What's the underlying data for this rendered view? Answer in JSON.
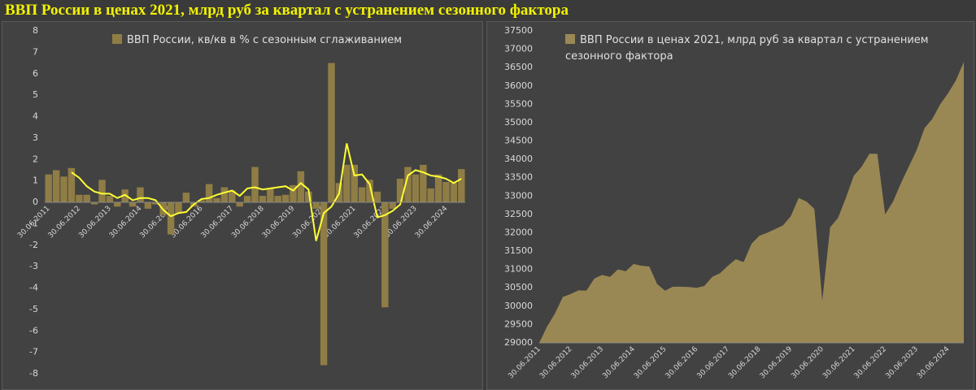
{
  "title": "ВВП России в ценах 2021, млрд руб за квартал с устранением сезонного фактора",
  "chart_data": [
    {
      "type": "bar",
      "categories": [
        "30.06.2011",
        null,
        null,
        null,
        "30.06.2012",
        null,
        null,
        null,
        "30.06.2013",
        null,
        null,
        null,
        "30.06.2014",
        null,
        null,
        null,
        "30.06.2015",
        null,
        null,
        null,
        "30.06.2016",
        null,
        null,
        null,
        "30.06.2017",
        null,
        null,
        null,
        "30.06.2018",
        null,
        null,
        null,
        "30.06.2019",
        null,
        null,
        null,
        "30.06.2020",
        null,
        null,
        null,
        "30.06.2021",
        null,
        null,
        null,
        "30.06.2022",
        null,
        null,
        null,
        "30.06.2023",
        null,
        null,
        null,
        "30.06.2024",
        null,
        null
      ],
      "series": [
        {
          "name": "ВВП России, кв/кв в % с сезонным сглаживанием",
          "color": "#8f7d45",
          "values": [
            1.3,
            1.5,
            1.2,
            1.6,
            0.35,
            0.35,
            -0.1,
            1.05,
            0.3,
            -0.2,
            0.6,
            -0.2,
            0.7,
            -0.3,
            -0.1,
            -0.6,
            -1.5,
            -0.5,
            0.45,
            -0.2,
            0.1,
            0.85,
            0.2,
            0.7,
            0.55,
            -0.2,
            0.3,
            1.65,
            0.3,
            0.65,
            0.3,
            0.35,
            0.8,
            1.45,
            0.5,
            -0.3,
            -7.6,
            6.5,
            0.9,
            1.75,
            1.75,
            0.7,
            1.05,
            0.5,
            -4.9,
            -0.3,
            1.1,
            1.65,
            1.3,
            1.75,
            0.65,
            1.3,
            0.95,
            0.9,
            1.55
          ]
        },
        {
          "type": "line",
          "color": "#ffff33",
          "values": [
            null,
            null,
            null,
            1.4,
            1.15,
            0.75,
            0.5,
            0.4,
            0.4,
            0.2,
            0.35,
            0.1,
            0.2,
            0.2,
            0.1,
            -0.35,
            -0.65,
            -0.5,
            -0.45,
            -0.1,
            0.15,
            0.2,
            0.35,
            0.45,
            0.55,
            0.3,
            0.65,
            0.7,
            0.6,
            0.65,
            0.7,
            0.75,
            0.55,
            0.9,
            0.6,
            -1.8,
            -0.5,
            -0.2,
            0.4,
            2.75,
            1.25,
            1.3,
            0.85,
            -0.7,
            -0.6,
            -0.4,
            -0.1,
            1.25,
            1.5,
            1.4,
            1.25,
            1.2,
            1.1,
            0.9,
            1.1
          ]
        }
      ],
      "ylim": [
        -8,
        8
      ],
      "yticks": [
        -8,
        -7,
        -6,
        -5,
        -4,
        -3,
        -2,
        -1,
        0,
        1,
        2,
        3,
        4,
        5,
        6,
        7,
        8
      ],
      "grid": false
    },
    {
      "type": "area",
      "categories": [
        "30.06.2011",
        null,
        null,
        null,
        "30.06.2012",
        null,
        null,
        null,
        "30.06.2013",
        null,
        null,
        null,
        "30.06.2014",
        null,
        null,
        null,
        "30.06.2015",
        null,
        null,
        null,
        "30.06.2016",
        null,
        null,
        null,
        "30.06.2017",
        null,
        null,
        null,
        "30.06.2018",
        null,
        null,
        null,
        "30.06.2019",
        null,
        null,
        null,
        "30.06.2020",
        null,
        null,
        null,
        "30.06.2021",
        null,
        null,
        null,
        "30.06.2022",
        null,
        null,
        null,
        "30.06.2023",
        null,
        null,
        null,
        "30.06.2024",
        null,
        null
      ],
      "series": [
        {
          "name": "ВВП России в ценах 2021, млрд руб за квартал с устранением сезонного фактора",
          "color": "#9a8854",
          "values": [
            29000,
            29450,
            29800,
            30250,
            30330,
            30430,
            30420,
            30750,
            30850,
            30800,
            31000,
            30950,
            31150,
            31100,
            31080,
            30600,
            30420,
            30530,
            30530,
            30520,
            30500,
            30550,
            30800,
            30900,
            31100,
            31280,
            31200,
            31700,
            31920,
            32000,
            32100,
            32200,
            32450,
            32950,
            32850,
            32650,
            30150,
            32150,
            32400,
            32950,
            33550,
            33800,
            34150,
            34150,
            32500,
            32850,
            33350,
            33800,
            34250,
            34850,
            35100,
            35500,
            35800,
            36150,
            36650
          ]
        }
      ],
      "ylim": [
        29000,
        37500
      ],
      "yticks": [
        29000,
        29500,
        30000,
        30500,
        31000,
        31500,
        32000,
        32500,
        33000,
        33500,
        34000,
        34500,
        35000,
        35500,
        36000,
        36500,
        37000,
        37500
      ],
      "grid": false
    }
  ]
}
